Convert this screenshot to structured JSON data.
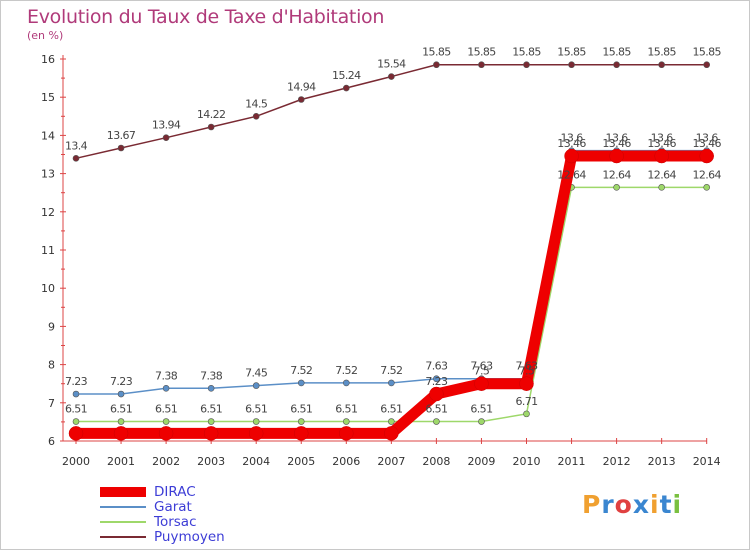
{
  "chart_data": {
    "type": "line",
    "title": "Evolution du Taux de Taxe d'Habitation",
    "subtitle": "(en %)",
    "categories": [
      "2000",
      "2001",
      "2002",
      "2003",
      "2004",
      "2005",
      "2006",
      "2007",
      "2008",
      "2009",
      "2010",
      "2011",
      "2012",
      "2013",
      "2014"
    ],
    "ylim": [
      6,
      16
    ],
    "yticks": [
      "6",
      "7",
      "8",
      "9",
      "10",
      "11",
      "12",
      "13",
      "14",
      "15",
      "16"
    ],
    "grid": false,
    "legend_position": "bottom-left",
    "series": [
      {
        "name": "DIRAC",
        "color": "#ee0000",
        "values": [
          6.2,
          6.2,
          6.2,
          6.2,
          6.2,
          6.2,
          6.2,
          6.2,
          7.23,
          7.5,
          7.5,
          13.46,
          13.46,
          13.46,
          13.46
        ],
        "labels": [
          "",
          "",
          "",
          "",
          "",
          "",
          "",
          "",
          "7.23",
          "7.5",
          "7.5",
          "13.46",
          "13.46",
          "13.46",
          "13.46"
        ]
      },
      {
        "name": "Garat",
        "color": "#5b8fc7",
        "values": [
          7.23,
          7.23,
          7.38,
          7.38,
          7.45,
          7.52,
          7.52,
          7.52,
          7.63,
          7.63,
          7.63,
          13.6,
          13.6,
          13.6,
          13.6
        ],
        "labels": [
          "7.23",
          "7.23",
          "7.38",
          "7.38",
          "7.45",
          "7.52",
          "7.52",
          "7.52",
          "7.63",
          "7.63",
          "7.63",
          "13.6",
          "13.6",
          "13.6",
          "13.6"
        ]
      },
      {
        "name": "Torsac",
        "color": "#9ed86a",
        "values": [
          6.51,
          6.51,
          6.51,
          6.51,
          6.51,
          6.51,
          6.51,
          6.51,
          6.51,
          6.51,
          6.71,
          12.64,
          12.64,
          12.64,
          12.64
        ],
        "labels": [
          "6.51",
          "6.51",
          "6.51",
          "6.51",
          "6.51",
          "6.51",
          "6.51",
          "6.51",
          "6.51",
          "6.51",
          "6.71",
          "12.64",
          "12.64",
          "12.64",
          "12.64"
        ]
      },
      {
        "name": "Puymoyen",
        "color": "#7a2a33",
        "values": [
          13.4,
          13.67,
          13.94,
          14.22,
          14.5,
          14.94,
          15.24,
          15.54,
          15.85,
          15.85,
          15.85,
          15.85,
          15.85,
          15.85,
          15.85
        ],
        "labels": [
          "13.4",
          "13.67",
          "13.94",
          "14.22",
          "14.5",
          "14.94",
          "15.24",
          "15.54",
          "15.85",
          "15.85",
          "15.85",
          "15.85",
          "15.85",
          "15.85",
          "15.85"
        ]
      }
    ]
  },
  "brand": {
    "letters": [
      "P",
      "r",
      "o",
      "x",
      "i",
      "t",
      "i"
    ],
    "colors": [
      "#f0a030",
      "#3a86d0",
      "#e04040",
      "#3a86d0",
      "#f0a030",
      "#3a86d0",
      "#7ac040"
    ]
  }
}
